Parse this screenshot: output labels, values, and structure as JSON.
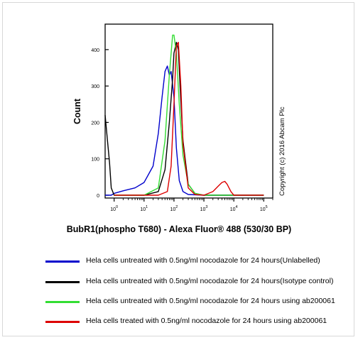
{
  "chart_data": {
    "type": "line",
    "title": "",
    "xlabel": "BubR1(phospho T680) - Alexa Fluor® 488 (530/30 BP)",
    "ylabel": "Count",
    "x_scale": "log",
    "xlim": [
      0.5,
      200000
    ],
    "ylim": [
      0,
      470
    ],
    "x_ticks": [
      {
        "exp": "0",
        "value": 1
      },
      {
        "exp": "1",
        "value": 10
      },
      {
        "exp": "2",
        "value": 100
      },
      {
        "exp": "3",
        "value": 1000
      },
      {
        "exp": "4",
        "value": 10000
      },
      {
        "exp": "5",
        "value": 100000
      }
    ],
    "y_ticks": [
      0,
      100,
      200,
      300,
      400
    ],
    "copyright": "Copyright (c) 2016 Abcam Plc",
    "series": [
      {
        "name": "Hela cells untreated with 0.5ng/ml nocodazole for 24 hours(Unlabelled)",
        "color": "#0000cc",
        "x": [
          0.5,
          0.8,
          1,
          2,
          5,
          10,
          20,
          30,
          40,
          50,
          60,
          70,
          80,
          100,
          120,
          150,
          200,
          300,
          1000,
          100000
        ],
        "y": [
          0,
          0,
          5,
          12,
          20,
          35,
          80,
          170,
          270,
          340,
          355,
          330,
          340,
          270,
          130,
          40,
          10,
          2,
          0,
          0
        ]
      },
      {
        "name": "Hela cells untreated with 0.5ng/ml nocodazole for 24 hours(Isotype control)",
        "color": "#000000",
        "x": [
          0.5,
          0.6,
          0.7,
          0.8,
          1,
          10,
          30,
          50,
          70,
          90,
          100,
          120,
          140,
          160,
          200,
          300,
          500,
          1000,
          100000
        ],
        "y": [
          220,
          150,
          90,
          20,
          0,
          0,
          10,
          70,
          200,
          320,
          390,
          420,
          400,
          300,
          150,
          30,
          5,
          0,
          0
        ]
      },
      {
        "name": "Hela cells untreated with 0.5ng/ml nocodazole for 24 hours using ab200061",
        "color": "#33dd33",
        "x": [
          1,
          10,
          30,
          50,
          70,
          90,
          100,
          120,
          150,
          200,
          300,
          500,
          1000,
          100000
        ],
        "y": [
          0,
          0,
          20,
          150,
          330,
          440,
          440,
          390,
          250,
          110,
          30,
          5,
          0,
          0
        ]
      },
      {
        "name": "Hela cells treated with 0.5ng/ml nocodazole for 24 hours using ab200061",
        "color": "#dd0000",
        "x": [
          1,
          30,
          60,
          80,
          100,
          120,
          140,
          170,
          200,
          300,
          500,
          1000,
          2000,
          3000,
          4000,
          5000,
          6000,
          8000,
          10000,
          100000
        ],
        "y": [
          0,
          0,
          10,
          80,
          250,
          410,
          420,
          300,
          140,
          20,
          2,
          0,
          10,
          25,
          35,
          38,
          30,
          10,
          0,
          0
        ]
      }
    ]
  },
  "legend": [
    {
      "text": "Hela cells untreated with 0.5ng/ml nocodazole for 24 hours(Unlabelled)",
      "color": "#0000cc"
    },
    {
      "text": "Hela cells untreated with 0.5ng/ml nocodazole for 24 hours(Isotype control)",
      "color": "#000000"
    },
    {
      "text": "Hela cells untreated with 0.5ng/ml nocodazole for 24 hours using ab200061",
      "color": "#33dd33"
    },
    {
      "text": "Hela cells treated with 0.5ng/ml nocodazole for 24 hours using ab200061",
      "color": "#dd0000"
    }
  ]
}
